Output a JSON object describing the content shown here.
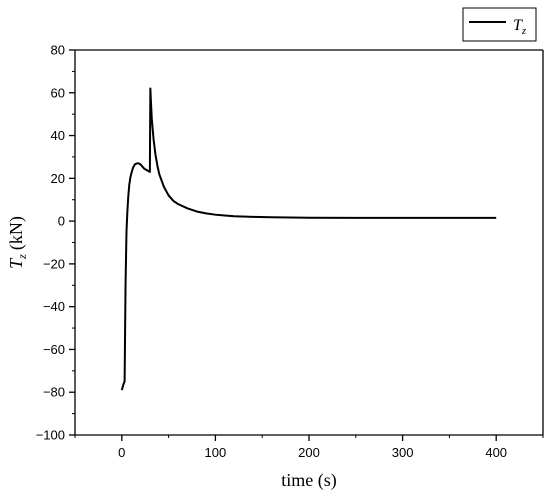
{
  "chart_data": {
    "type": "line",
    "title": "",
    "xlabel": "time (s)",
    "ylabel": "(kN)",
    "ylabel_symbol": "T",
    "ylabel_subscript": "z",
    "xlim": [
      -50,
      450
    ],
    "ylim": [
      -100,
      80
    ],
    "xticks": [
      0,
      100,
      200,
      300,
      400
    ],
    "yticks": [
      -100,
      -80,
      -60,
      -40,
      -20,
      0,
      20,
      40,
      60,
      80
    ],
    "xtick_labels": [
      "0",
      "100",
      "200",
      "300",
      "400"
    ],
    "ytick_labels": [
      "−100",
      "−80",
      "−60",
      "−40",
      "−20",
      "0",
      "20",
      "40",
      "60",
      "80"
    ],
    "grid": false,
    "legend_position": "top-right",
    "series": [
      {
        "name": "Tz",
        "name_symbol": "T",
        "name_subscript": "z",
        "color": "#000000",
        "x": [
          0,
          2,
          3,
          4,
          5,
          6,
          7,
          8,
          9,
          10,
          12,
          14,
          16,
          18,
          20,
          22,
          24,
          26,
          28,
          30,
          30.5,
          31,
          32,
          34,
          36,
          38,
          40,
          45,
          50,
          55,
          60,
          70,
          80,
          90,
          100,
          110,
          120,
          140,
          160,
          180,
          200,
          250,
          300,
          350,
          400
        ],
        "y": [
          -79,
          -76,
          -75,
          -30,
          -5,
          5,
          12,
          17,
          20,
          22,
          25,
          26.5,
          27,
          27,
          26.5,
          25.5,
          24.5,
          24,
          23.5,
          23,
          62,
          57,
          48,
          38,
          31,
          26,
          22,
          16,
          12,
          9.5,
          8,
          6,
          4.5,
          3.6,
          3,
          2.6,
          2.3,
          2,
          1.8,
          1.7,
          1.6,
          1.5,
          1.5,
          1.5,
          1.5
        ]
      }
    ]
  }
}
